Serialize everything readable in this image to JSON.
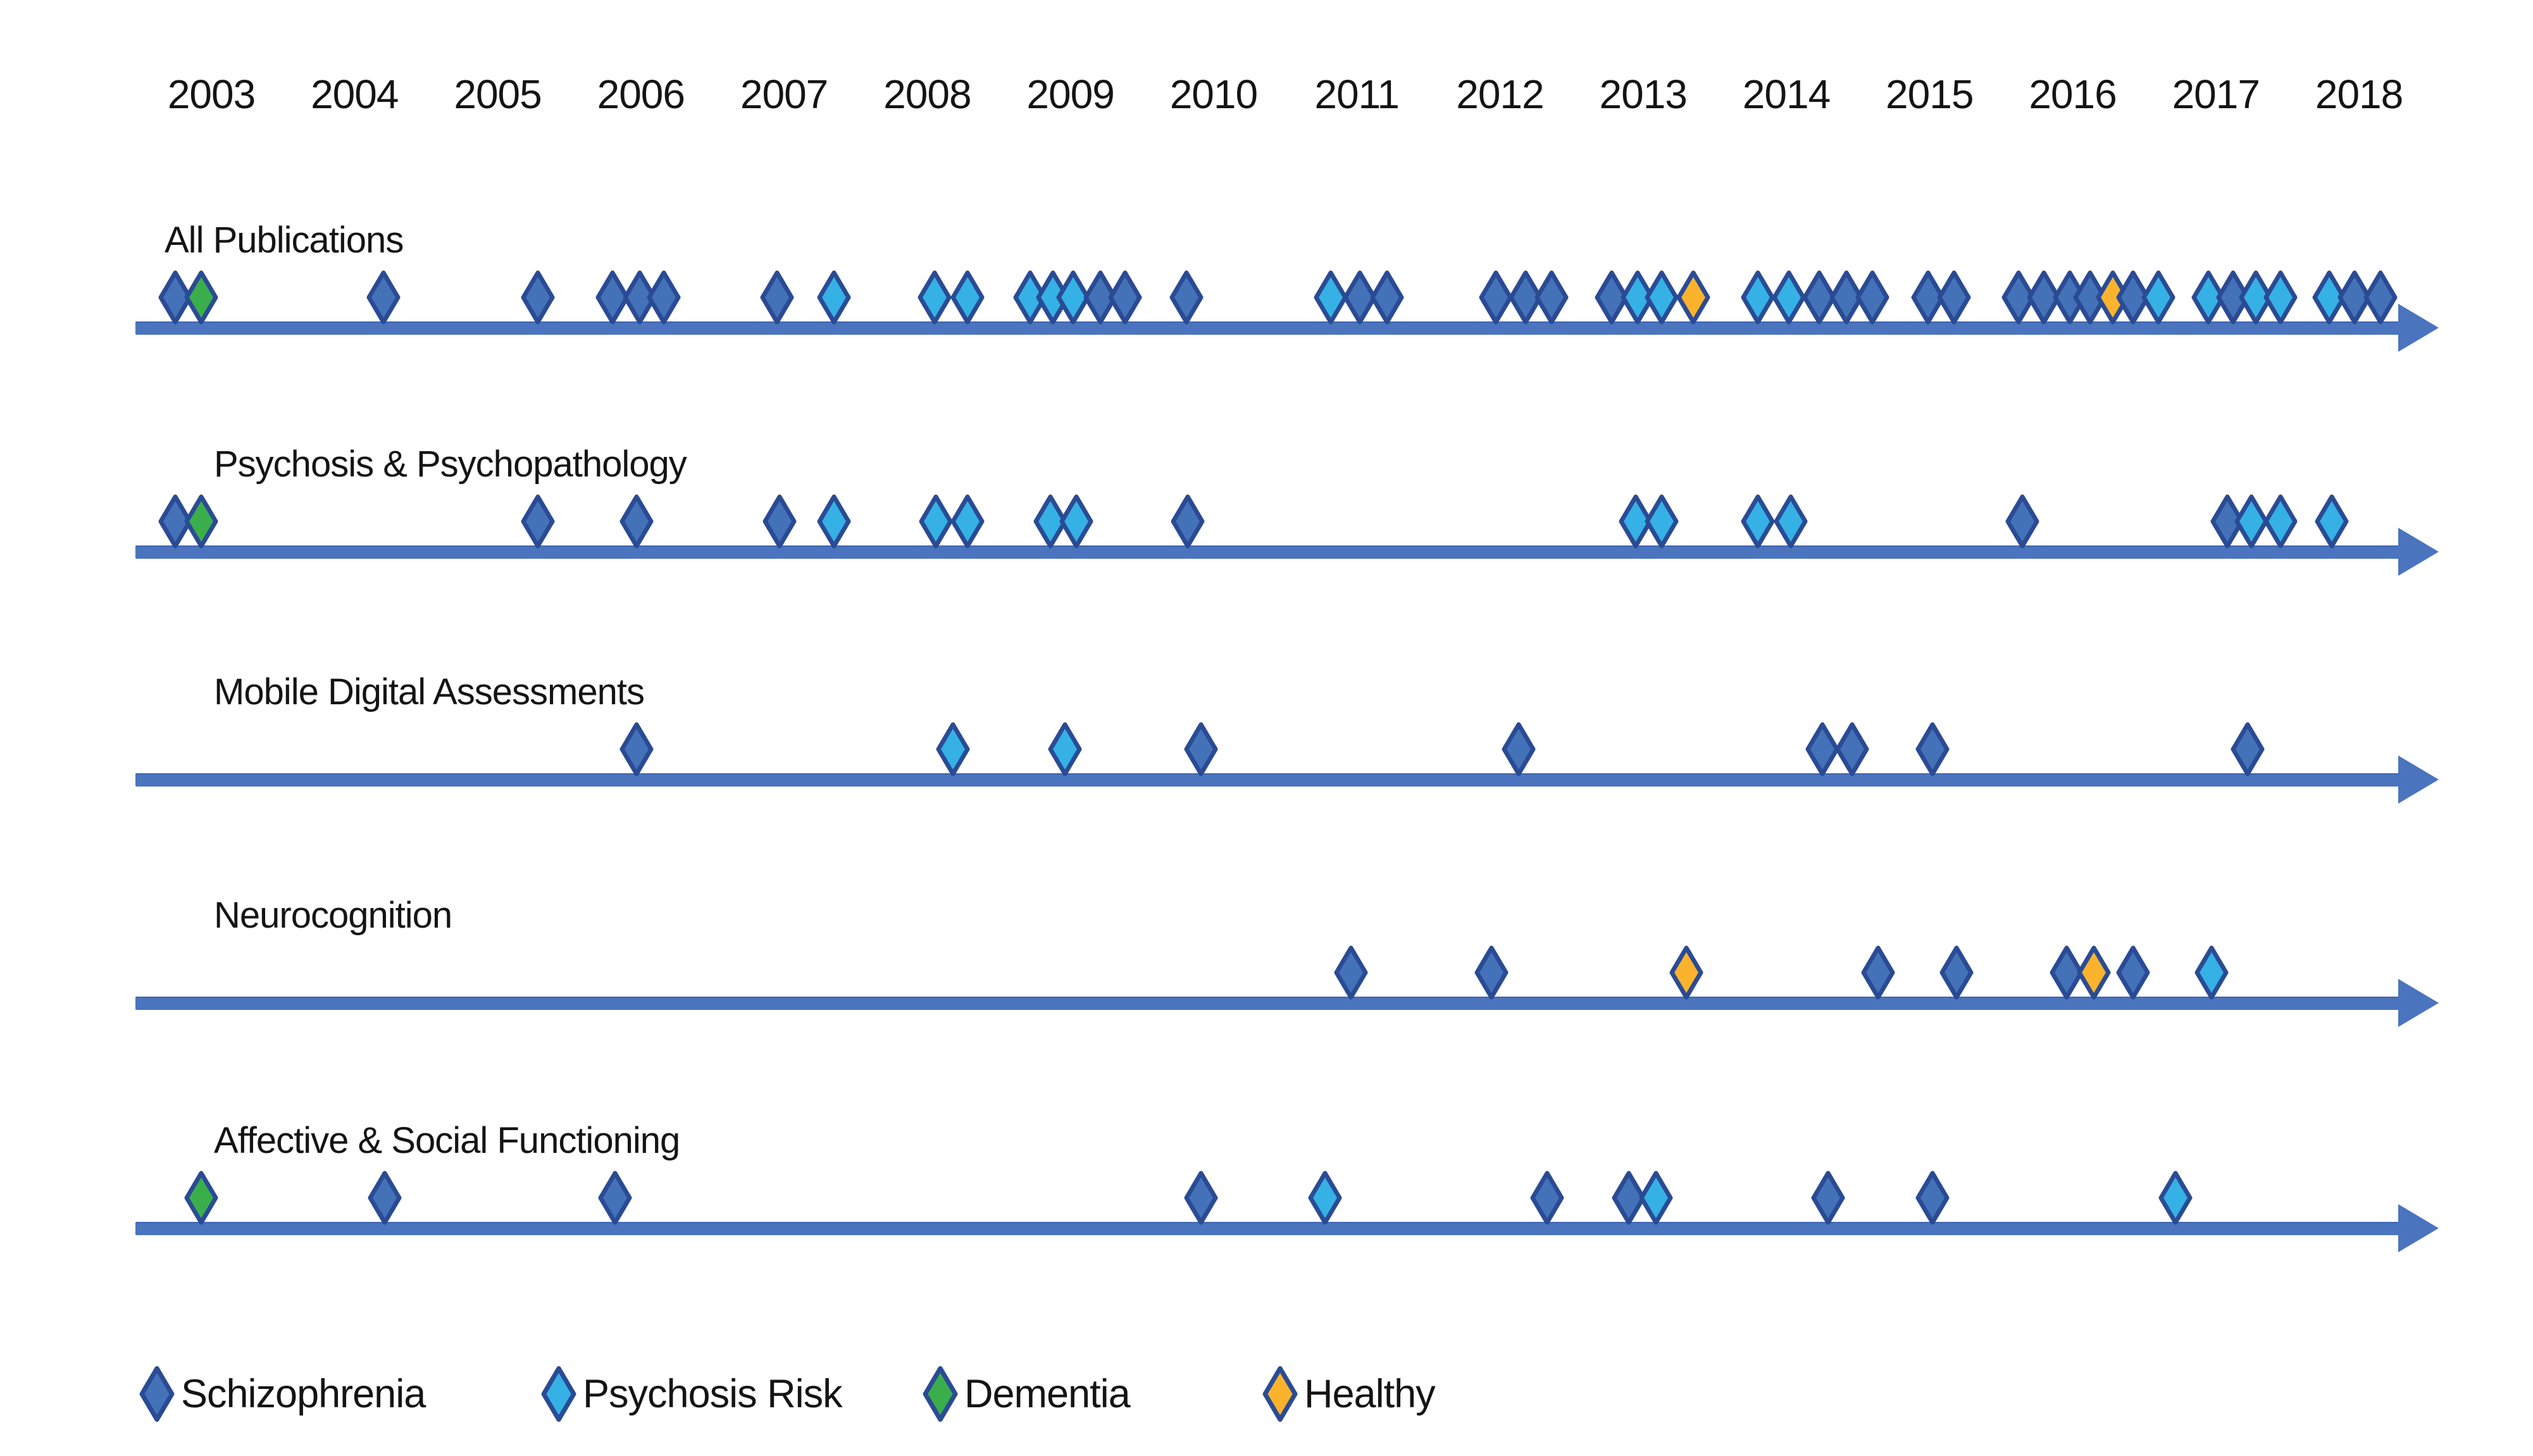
{
  "figure": {
    "background": "#FFFFFF",
    "axis_color": "#4A74BE",
    "marker_border_color": "#2A4B94",
    "text_color": "#141414"
  },
  "chart_data": {
    "type": "scatter",
    "marker_shape": "diamond",
    "grid": false,
    "xlim": [
      2002.5,
      2018.7
    ],
    "x_ticks": [
      "2003",
      "2004",
      "2005",
      "2006",
      "2007",
      "2008",
      "2009",
      "2010",
      "2011",
      "2012",
      "2013",
      "2014",
      "2015",
      "2016",
      "2017",
      "2018"
    ],
    "legend_position": "bottom",
    "legend": [
      {
        "label": "Schizophrenia",
        "color": "#4472B9"
      },
      {
        "label": "Psychosis Risk",
        "color": "#35B1E5"
      },
      {
        "label": "Dementia",
        "color": "#3BAE4C"
      },
      {
        "label": "Healthy",
        "color": "#FBB32E"
      }
    ],
    "rows": [
      {
        "label": "All Publications",
        "points": [
          {
            "year": 2002.75,
            "group": "Schizophrenia"
          },
          {
            "year": 2002.93,
            "group": "Dementia"
          },
          {
            "year": 2004.2,
            "group": "Schizophrenia"
          },
          {
            "year": 2005.28,
            "group": "Schizophrenia"
          },
          {
            "year": 2005.8,
            "group": "Schizophrenia"
          },
          {
            "year": 2005.99,
            "group": "Schizophrenia"
          },
          {
            "year": 2006.16,
            "group": "Schizophrenia"
          },
          {
            "year": 2006.95,
            "group": "Schizophrenia"
          },
          {
            "year": 2007.35,
            "group": "Psychosis Risk"
          },
          {
            "year": 2008.05,
            "group": "Psychosis Risk"
          },
          {
            "year": 2008.28,
            "group": "Psychosis Risk"
          },
          {
            "year": 2008.72,
            "group": "Psychosis Risk"
          },
          {
            "year": 2008.88,
            "group": "Psychosis Risk"
          },
          {
            "year": 2009.02,
            "group": "Psychosis Risk"
          },
          {
            "year": 2009.21,
            "group": "Schizophrenia"
          },
          {
            "year": 2009.38,
            "group": "Schizophrenia"
          },
          {
            "year": 2009.81,
            "group": "Schizophrenia"
          },
          {
            "year": 2010.82,
            "group": "Psychosis Risk"
          },
          {
            "year": 2011.02,
            "group": "Schizophrenia"
          },
          {
            "year": 2011.21,
            "group": "Schizophrenia"
          },
          {
            "year": 2011.97,
            "group": "Schizophrenia"
          },
          {
            "year": 2012.18,
            "group": "Schizophrenia"
          },
          {
            "year": 2012.36,
            "group": "Schizophrenia"
          },
          {
            "year": 2012.78,
            "group": "Schizophrenia"
          },
          {
            "year": 2012.96,
            "group": "Psychosis Risk"
          },
          {
            "year": 2013.13,
            "group": "Psychosis Risk"
          },
          {
            "year": 2013.35,
            "group": "Healthy"
          },
          {
            "year": 2013.8,
            "group": "Psychosis Risk"
          },
          {
            "year": 2014.02,
            "group": "Psychosis Risk"
          },
          {
            "year": 2014.23,
            "group": "Schizophrenia"
          },
          {
            "year": 2014.42,
            "group": "Schizophrenia"
          },
          {
            "year": 2014.6,
            "group": "Schizophrenia"
          },
          {
            "year": 2014.99,
            "group": "Schizophrenia"
          },
          {
            "year": 2015.17,
            "group": "Schizophrenia"
          },
          {
            "year": 2015.62,
            "group": "Schizophrenia"
          },
          {
            "year": 2015.8,
            "group": "Schizophrenia"
          },
          {
            "year": 2015.98,
            "group": "Schizophrenia"
          },
          {
            "year": 2016.12,
            "group": "Schizophrenia"
          },
          {
            "year": 2016.28,
            "group": "Healthy"
          },
          {
            "year": 2016.42,
            "group": "Schizophrenia"
          },
          {
            "year": 2016.6,
            "group": "Psychosis Risk"
          },
          {
            "year": 2016.95,
            "group": "Psychosis Risk"
          },
          {
            "year": 2017.12,
            "group": "Schizophrenia"
          },
          {
            "year": 2017.28,
            "group": "Psychosis Risk"
          },
          {
            "year": 2017.45,
            "group": "Psychosis Risk"
          },
          {
            "year": 2017.79,
            "group": "Psychosis Risk"
          },
          {
            "year": 2017.97,
            "group": "Schizophrenia"
          },
          {
            "year": 2018.15,
            "group": "Schizophrenia"
          }
        ]
      },
      {
        "label": "Psychosis & Psychopathology",
        "points": [
          {
            "year": 2002.75,
            "group": "Schizophrenia"
          },
          {
            "year": 2002.93,
            "group": "Dementia"
          },
          {
            "year": 2005.28,
            "group": "Schizophrenia"
          },
          {
            "year": 2005.97,
            "group": "Schizophrenia"
          },
          {
            "year": 2006.97,
            "group": "Schizophrenia"
          },
          {
            "year": 2007.35,
            "group": "Psychosis Risk"
          },
          {
            "year": 2008.06,
            "group": "Psychosis Risk"
          },
          {
            "year": 2008.28,
            "group": "Psychosis Risk"
          },
          {
            "year": 2008.86,
            "group": "Psychosis Risk"
          },
          {
            "year": 2009.04,
            "group": "Psychosis Risk"
          },
          {
            "year": 2009.82,
            "group": "Schizophrenia"
          },
          {
            "year": 2012.95,
            "group": "Psychosis Risk"
          },
          {
            "year": 2013.13,
            "group": "Psychosis Risk"
          },
          {
            "year": 2013.8,
            "group": "Psychosis Risk"
          },
          {
            "year": 2014.03,
            "group": "Psychosis Risk"
          },
          {
            "year": 2015.65,
            "group": "Schizophrenia"
          },
          {
            "year": 2017.08,
            "group": "Schizophrenia"
          },
          {
            "year": 2017.25,
            "group": "Psychosis Risk"
          },
          {
            "year": 2017.45,
            "group": "Psychosis Risk"
          },
          {
            "year": 2017.81,
            "group": "Psychosis Risk"
          }
        ]
      },
      {
        "label": "Mobile Digital Assessments",
        "points": [
          {
            "year": 2005.97,
            "group": "Schizophrenia"
          },
          {
            "year": 2008.18,
            "group": "Psychosis Risk"
          },
          {
            "year": 2008.96,
            "group": "Psychosis Risk"
          },
          {
            "year": 2009.91,
            "group": "Schizophrenia"
          },
          {
            "year": 2012.13,
            "group": "Schizophrenia"
          },
          {
            "year": 2014.25,
            "group": "Schizophrenia"
          },
          {
            "year": 2014.46,
            "group": "Schizophrenia"
          },
          {
            "year": 2015.02,
            "group": "Schizophrenia"
          },
          {
            "year": 2017.22,
            "group": "Schizophrenia"
          }
        ]
      },
      {
        "label": "Neurocognition",
        "points": [
          {
            "year": 2010.96,
            "group": "Schizophrenia"
          },
          {
            "year": 2011.94,
            "group": "Schizophrenia"
          },
          {
            "year": 2013.3,
            "group": "Healthy"
          },
          {
            "year": 2014.64,
            "group": "Schizophrenia"
          },
          {
            "year": 2015.19,
            "group": "Schizophrenia"
          },
          {
            "year": 2015.96,
            "group": "Schizophrenia"
          },
          {
            "year": 2016.15,
            "group": "Healthy"
          },
          {
            "year": 2016.42,
            "group": "Schizophrenia"
          },
          {
            "year": 2016.97,
            "group": "Psychosis Risk"
          }
        ]
      },
      {
        "label": "Affective & Social Functioning",
        "points": [
          {
            "year": 2002.93,
            "group": "Dementia"
          },
          {
            "year": 2004.21,
            "group": "Schizophrenia"
          },
          {
            "year": 2005.82,
            "group": "Schizophrenia"
          },
          {
            "year": 2009.91,
            "group": "Schizophrenia"
          },
          {
            "year": 2010.78,
            "group": "Psychosis Risk"
          },
          {
            "year": 2012.33,
            "group": "Schizophrenia"
          },
          {
            "year": 2012.9,
            "group": "Schizophrenia"
          },
          {
            "year": 2013.09,
            "group": "Psychosis Risk"
          },
          {
            "year": 2014.29,
            "group": "Schizophrenia"
          },
          {
            "year": 2015.02,
            "group": "Schizophrenia"
          },
          {
            "year": 2016.72,
            "group": "Psychosis Risk"
          }
        ]
      }
    ]
  }
}
